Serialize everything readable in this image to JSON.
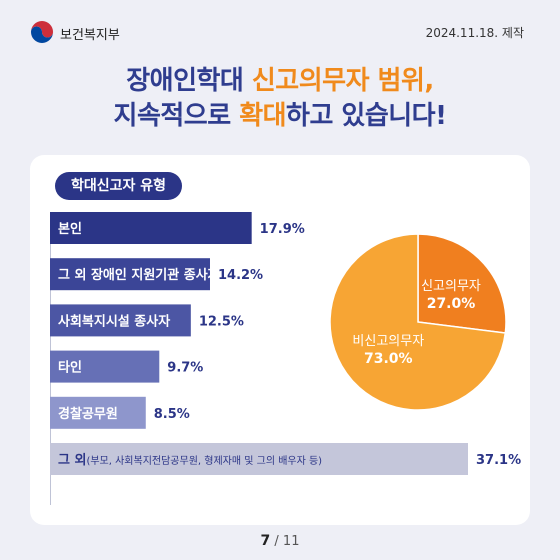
{
  "header": {
    "org": "보건복지부",
    "date": "2024.11.18. 제작"
  },
  "title": {
    "line1_a": "장애인학대 ",
    "line1_b": "신고의무자 범위,",
    "line2_a": "지속적으로 ",
    "line2_b": "확대",
    "line2_c": "하고 있습니다!"
  },
  "section_label": "학대신고자 유형",
  "colors": {
    "bar_dark": "#2b3587",
    "bar_light": "#bfc1d6",
    "pie_orange": "#f07f1f",
    "pie_yellow": "#f7a534"
  },
  "chart_data": [
    {
      "type": "bar",
      "orientation": "horizontal",
      "categories": [
        "본인",
        "그 외 장애인 지원기관 종사자",
        "사회복지시설 종사자",
        "타인",
        "경찰공무원",
        "그 외"
      ],
      "category_notes": [
        "",
        "",
        "",
        "",
        "",
        "(부모, 사회복지전담공무원, 형제자매 및 그의 배우자 등)"
      ],
      "values": [
        17.9,
        14.2,
        12.5,
        9.7,
        8.5,
        37.1
      ],
      "value_labels": [
        "17.9%",
        "14.2%",
        "12.5%",
        "9.7%",
        "8.5%",
        "37.1%"
      ],
      "bar_colors": [
        "#2b3587",
        "#3b4597",
        "#4c56a4",
        "#6670b6",
        "#8e96cc",
        "#c4c6da"
      ],
      "xlim": [
        0,
        37.1
      ]
    },
    {
      "type": "pie",
      "slices": [
        {
          "label": "신고의무자",
          "value": 27.0,
          "value_label": "27.0%",
          "color": "#f07f1f"
        },
        {
          "label": "비신고의무자",
          "value": 73.0,
          "value_label": "73.0%",
          "color": "#f7a534"
        }
      ]
    }
  ],
  "footer": {
    "current": "7",
    "total": "/ 11"
  }
}
